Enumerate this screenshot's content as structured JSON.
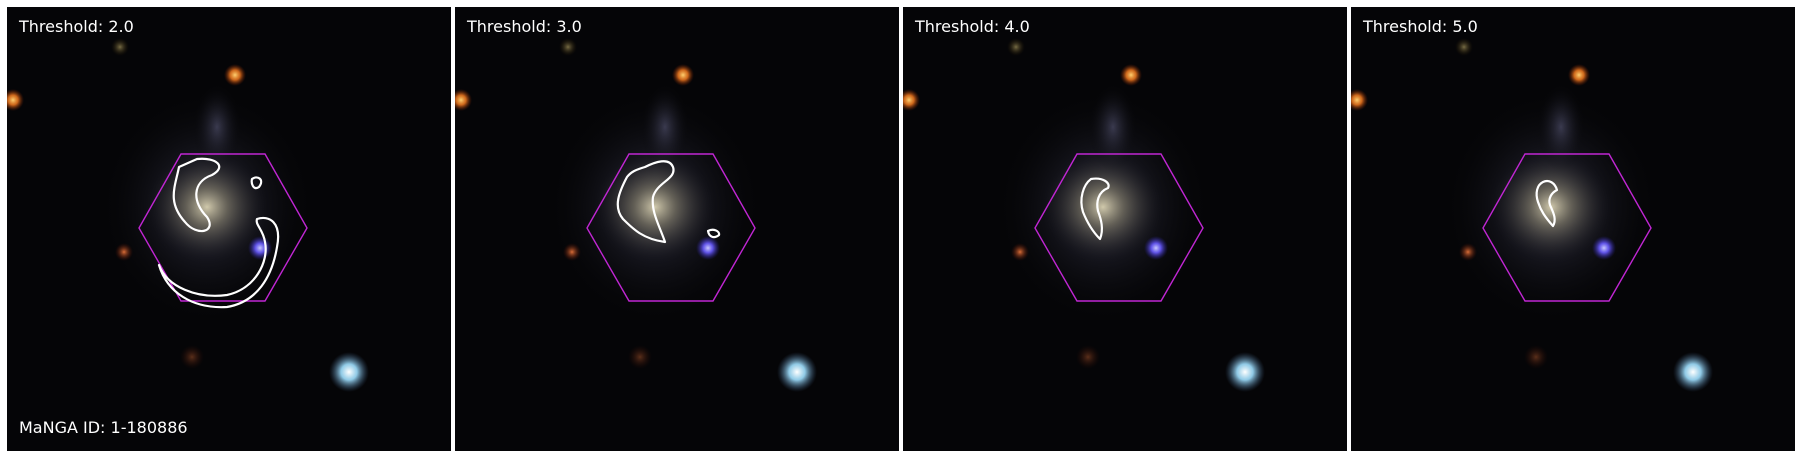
{
  "galaxy": {
    "manga_label": "MaNGA ID: 1-180886"
  },
  "colors": {
    "hexagon": "#c026d3",
    "contour": "#ffffff",
    "background": "#000000"
  },
  "panels": [
    {
      "threshold_label": "Threshold: 2.0",
      "show_manga_label": true
    },
    {
      "threshold_label": "Threshold: 3.0",
      "show_manga_label": false
    },
    {
      "threshold_label": "Threshold: 4.0",
      "show_manga_label": false
    },
    {
      "threshold_label": "Threshold: 5.0",
      "show_manga_label": false
    }
  ]
}
